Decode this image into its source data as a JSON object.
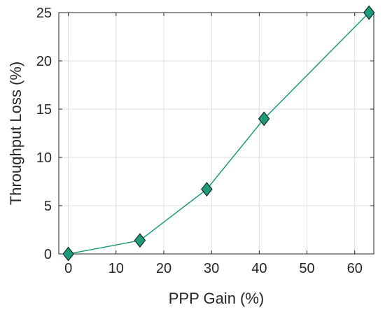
{
  "chart_data": {
    "type": "line",
    "title": "",
    "xlabel": "PPP Gain (%)",
    "ylabel": "Throughput Loss (%)",
    "xlim": [
      -2,
      64
    ],
    "ylim": [
      0,
      25
    ],
    "x_ticks": [
      0,
      10,
      20,
      30,
      40,
      50,
      60
    ],
    "y_ticks": [
      0,
      5,
      10,
      15,
      20,
      25
    ],
    "grid": true,
    "marker": "diamond",
    "series": [
      {
        "color": "#1f9a7a",
        "x": [
          0,
          15,
          29,
          41,
          63
        ],
        "y": [
          0,
          1.4,
          6.7,
          14.0,
          25.0
        ]
      }
    ]
  }
}
